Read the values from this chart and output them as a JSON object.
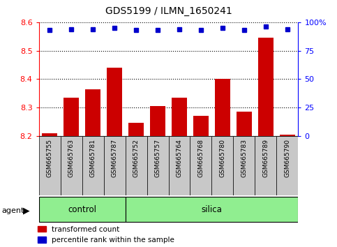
{
  "title": "GDS5199 / ILMN_1650241",
  "samples": [
    "GSM665755",
    "GSM665763",
    "GSM665781",
    "GSM665787",
    "GSM665752",
    "GSM665757",
    "GSM665764",
    "GSM665768",
    "GSM665780",
    "GSM665783",
    "GSM665789",
    "GSM665790"
  ],
  "groups": [
    "control",
    "control",
    "control",
    "control",
    "silica",
    "silica",
    "silica",
    "silica",
    "silica",
    "silica",
    "silica",
    "silica"
  ],
  "transformed_count": [
    8.21,
    8.335,
    8.365,
    8.44,
    8.245,
    8.305,
    8.335,
    8.27,
    8.4,
    8.285,
    8.545,
    8.205
  ],
  "percentile_rank": [
    93,
    94,
    94,
    95,
    93,
    93,
    94,
    93,
    95,
    93,
    96,
    94
  ],
  "ylim_left": [
    8.2,
    8.6
  ],
  "ylim_right": [
    0,
    100
  ],
  "yticks_left": [
    8.2,
    8.3,
    8.4,
    8.5,
    8.6
  ],
  "yticks_right": [
    0,
    25,
    50,
    75,
    100
  ],
  "bar_color": "#cc0000",
  "dot_color": "#0000cc",
  "bar_bottom": 8.2,
  "green_color": "#90ee90",
  "gray_color": "#c8c8c8",
  "plot_bg": "#ffffff",
  "legend_bar": "transformed count",
  "legend_dot": "percentile rank within the sample",
  "control_count": 4,
  "silica_count": 8
}
